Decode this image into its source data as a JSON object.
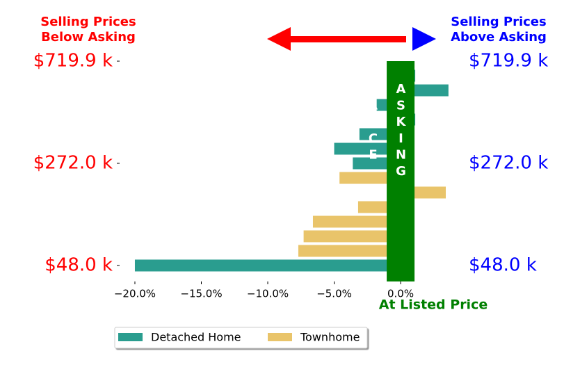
{
  "chart_data": {
    "type": "barh",
    "annotations": {
      "below_asking": [
        "Selling Prices",
        "Below Asking"
      ],
      "above_asking": [
        "Selling Prices",
        "Above Asking"
      ],
      "band_label": "ASKING PRICE",
      "x_label": "At Listed Price"
    },
    "categories": [
      "$48.0 k",
      null,
      null,
      null,
      null,
      null,
      null,
      "$272.0 k",
      null,
      null,
      null,
      null,
      null,
      null,
      "$719.9 k"
    ],
    "series": [
      {
        "name": "Detached Home",
        "color": "#2a9d8f",
        "values": [
          -20.0,
          null,
          null,
          null,
          null,
          null,
          null,
          -3.6,
          -5.0,
          -3.1,
          1.1,
          -1.8,
          3.6,
          1.1,
          null
        ]
      },
      {
        "name": "Townhome",
        "color": "#e9c46a",
        "values": [
          null,
          -7.7,
          -7.3,
          -6.6,
          -3.2,
          3.4,
          -4.6,
          null,
          null,
          null,
          null,
          null,
          null,
          null,
          null
        ]
      }
    ],
    "xlim": [
      -21.15,
      3.87
    ],
    "xticks": [
      {
        "value": -20,
        "label": "−20.0%"
      },
      {
        "value": -15,
        "label": "−15.0%"
      },
      {
        "value": -10,
        "label": "−10.0%"
      },
      {
        "value": -5,
        "label": "−5.0%"
      },
      {
        "value": 0,
        "label": "0.0%"
      }
    ],
    "legend": "lower left"
  }
}
